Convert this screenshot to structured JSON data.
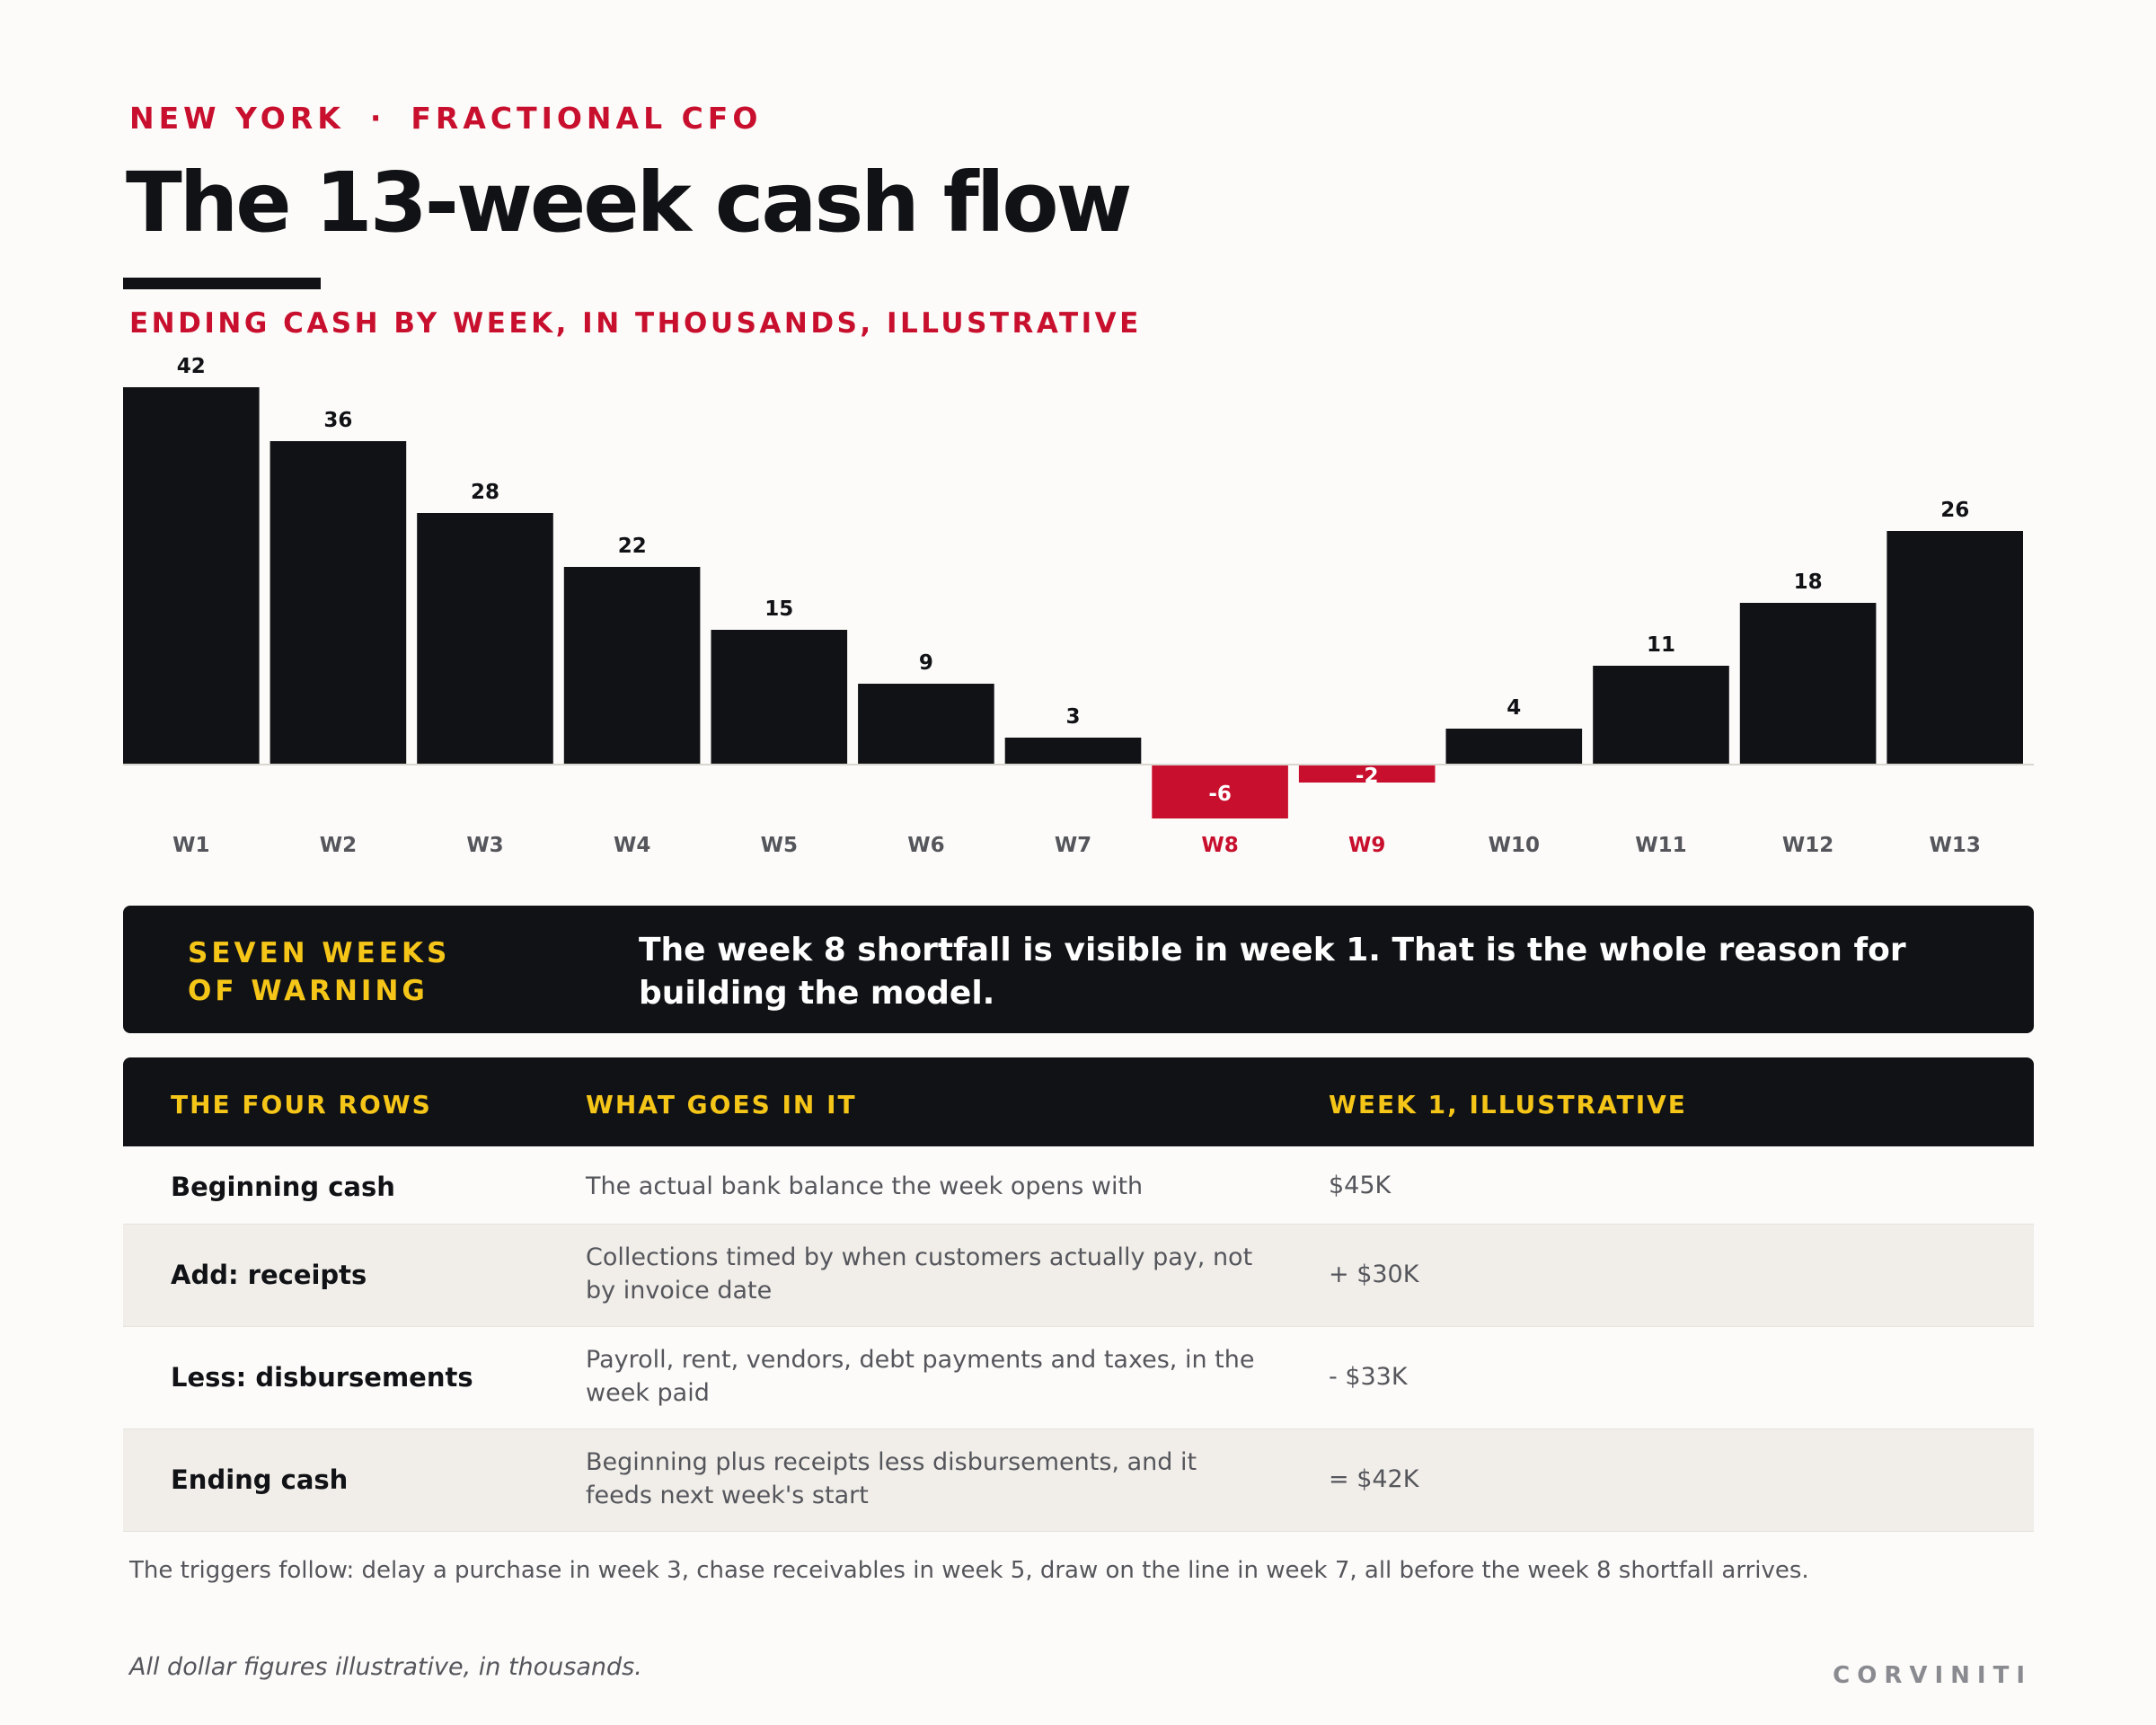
{
  "header": {
    "location": "NEW YORK",
    "separator": "·",
    "service": "FRACTIONAL CFO",
    "title": "The 13-week cash flow",
    "subtitle": "ENDING CASH BY WEEK, IN THOUSANDS, ILLUSTRATIVE"
  },
  "colors": {
    "positive": "#111216",
    "negative": "#c8102e",
    "accent": "#f5c518",
    "label": "#55565c"
  },
  "chart_data": {
    "type": "bar",
    "title": "ENDING CASH BY WEEK, IN THOUSANDS, ILLUSTRATIVE",
    "xlabel": "",
    "ylabel": "",
    "categories": [
      "W1",
      "W2",
      "W3",
      "W4",
      "W5",
      "W6",
      "W7",
      "W8",
      "W9",
      "W10",
      "W11",
      "W12",
      "W13"
    ],
    "values": [
      42,
      36,
      28,
      22,
      15,
      9,
      3,
      -6,
      -2,
      4,
      11,
      18,
      26
    ],
    "ylim": [
      -6,
      42
    ],
    "grid": false,
    "legend": "none",
    "data_labels": true,
    "negative_highlight": true
  },
  "callout": {
    "label": "SEVEN WEEKS OF WARNING",
    "text": "The week 8 shortfall is visible in week 1. That is the whole reason for building the model."
  },
  "table": {
    "headers": [
      "THE FOUR ROWS",
      "WHAT GOES IN IT",
      "WEEK 1, ILLUSTRATIVE"
    ],
    "rows": [
      {
        "name": "Beginning cash",
        "desc": "The actual bank balance the week opens with",
        "value": "$45K"
      },
      {
        "name": "Add: receipts",
        "desc": "Collections timed by when customers actually pay, not by invoice date",
        "value": "+ $30K"
      },
      {
        "name": "Less: disbursements",
        "desc": "Payroll, rent, vendors, debt payments and taxes, in the week paid",
        "value": "- $33K"
      },
      {
        "name": "Ending cash",
        "desc": "Beginning plus receipts less disbursements, and it feeds next week's start",
        "value": "= $42K"
      }
    ]
  },
  "footnote": "The triggers follow: delay a purchase in week 3, chase receivables in week 5, draw on the line in week 7, all before the week 8 shortfall arrives.",
  "disclaimer": "All dollar figures illustrative, in thousands.",
  "brand": "CORVINITI"
}
